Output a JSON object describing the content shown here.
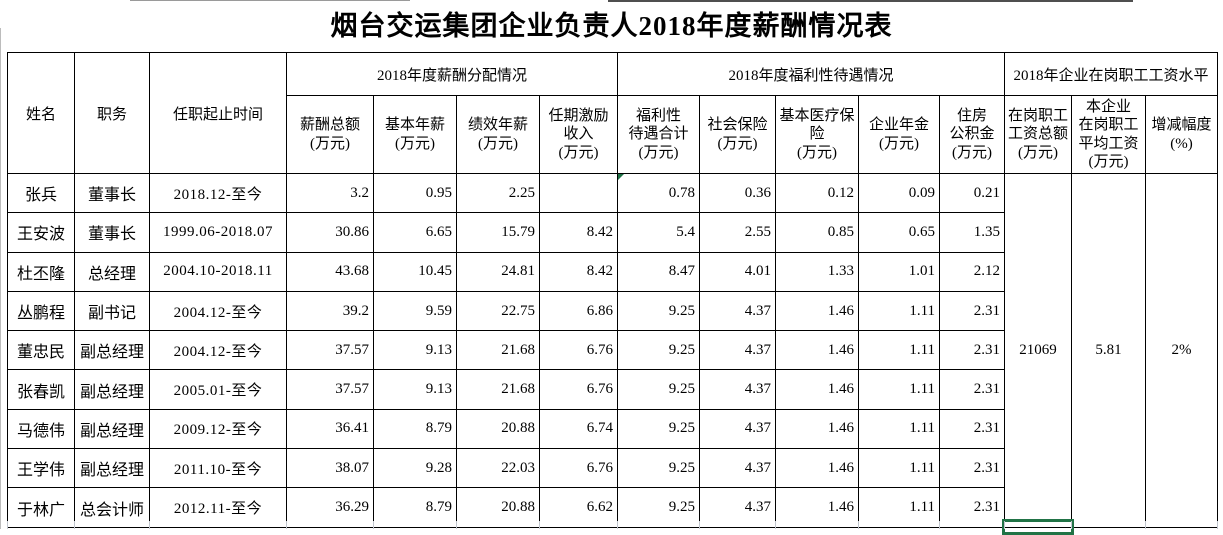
{
  "title": "烟台交运集团企业负责人2018年度薪酬情况表",
  "table": {
    "left_headers": [
      "姓名",
      "职务",
      "任职起止时间"
    ],
    "groups": [
      {
        "label": "2018年度薪酬分配情况",
        "cols": [
          "薪酬总额\n(万元)",
          "基本年薪\n(万元)",
          "绩效年薪\n(万元)",
          "任期激励\n收入\n(万元)"
        ]
      },
      {
        "label": "2018年度福利性待遇情况",
        "cols": [
          "福利性\n待遇合计\n(万元)",
          "社会保险\n(万元)",
          "基本医疗保\n险\n(万元)",
          "企业年金\n(万元)",
          "住房\n公积金\n(万元)"
        ]
      },
      {
        "label": "2018年企业在岗职工工资水平",
        "cols": [
          "在岗职工\n工资总额\n(万元)",
          "本企业\n在岗职工\n平均工资\n(万元)",
          "增减幅度\n(%)"
        ]
      }
    ],
    "rows": [
      {
        "name": "张兵",
        "position": "董事长",
        "term": "2018.12-至今",
        "values": [
          "3.2",
          "0.95",
          "2.25",
          "",
          "0.78",
          "0.36",
          "0.12",
          "0.09",
          "0.21"
        ]
      },
      {
        "name": "王安波",
        "position": "董事长",
        "term": "1999.06-2018.07",
        "values": [
          "30.86",
          "6.65",
          "15.79",
          "8.42",
          "5.4",
          "2.55",
          "0.85",
          "0.65",
          "1.35"
        ]
      },
      {
        "name": "杜丕隆",
        "position": "总经理",
        "term": "2004.10-2018.11",
        "values": [
          "43.68",
          "10.45",
          "24.81",
          "8.42",
          "8.47",
          "4.01",
          "1.33",
          "1.01",
          "2.12"
        ]
      },
      {
        "name": "丛鹏程",
        "position": "副书记",
        "term": "2004.12-至今",
        "values": [
          "39.2",
          "9.59",
          "22.75",
          "6.86",
          "9.25",
          "4.37",
          "1.46",
          "1.11",
          "2.31"
        ]
      },
      {
        "name": "董忠民",
        "position": "副总经理",
        "term": "2004.12-至今",
        "values": [
          "37.57",
          "9.13",
          "21.68",
          "6.76",
          "9.25",
          "4.37",
          "1.46",
          "1.11",
          "2.31"
        ]
      },
      {
        "name": "张春凯",
        "position": "副总经理",
        "term": "2005.01-至今",
        "values": [
          "37.57",
          "9.13",
          "21.68",
          "6.76",
          "9.25",
          "4.37",
          "1.46",
          "1.11",
          "2.31"
        ]
      },
      {
        "name": "马德伟",
        "position": "副总经理",
        "term": "2009.12-至今",
        "values": [
          "36.41",
          "8.79",
          "20.88",
          "6.74",
          "9.25",
          "4.37",
          "1.46",
          "1.11",
          "2.31"
        ]
      },
      {
        "name": "王学伟",
        "position": "副总经理",
        "term": "2011.10-至今",
        "values": [
          "38.07",
          "9.28",
          "22.03",
          "6.76",
          "9.25",
          "4.37",
          "1.46",
          "1.11",
          "2.31"
        ]
      },
      {
        "name": "于林广",
        "position": "总会计师",
        "term": "2012.11-至今",
        "values": [
          "36.29",
          "8.79",
          "20.88",
          "6.62",
          "9.25",
          "4.37",
          "1.46",
          "1.11",
          "2.31"
        ]
      }
    ],
    "merged": {
      "staff_total_wage": "21069",
      "staff_avg_wage": "5.81",
      "change_rate": "2%"
    }
  },
  "markers": {
    "selection_border_color": "#217346",
    "error_indicator_color": "#1e7145",
    "error_indicator_cell": "张兵 福利性待遇合计"
  }
}
